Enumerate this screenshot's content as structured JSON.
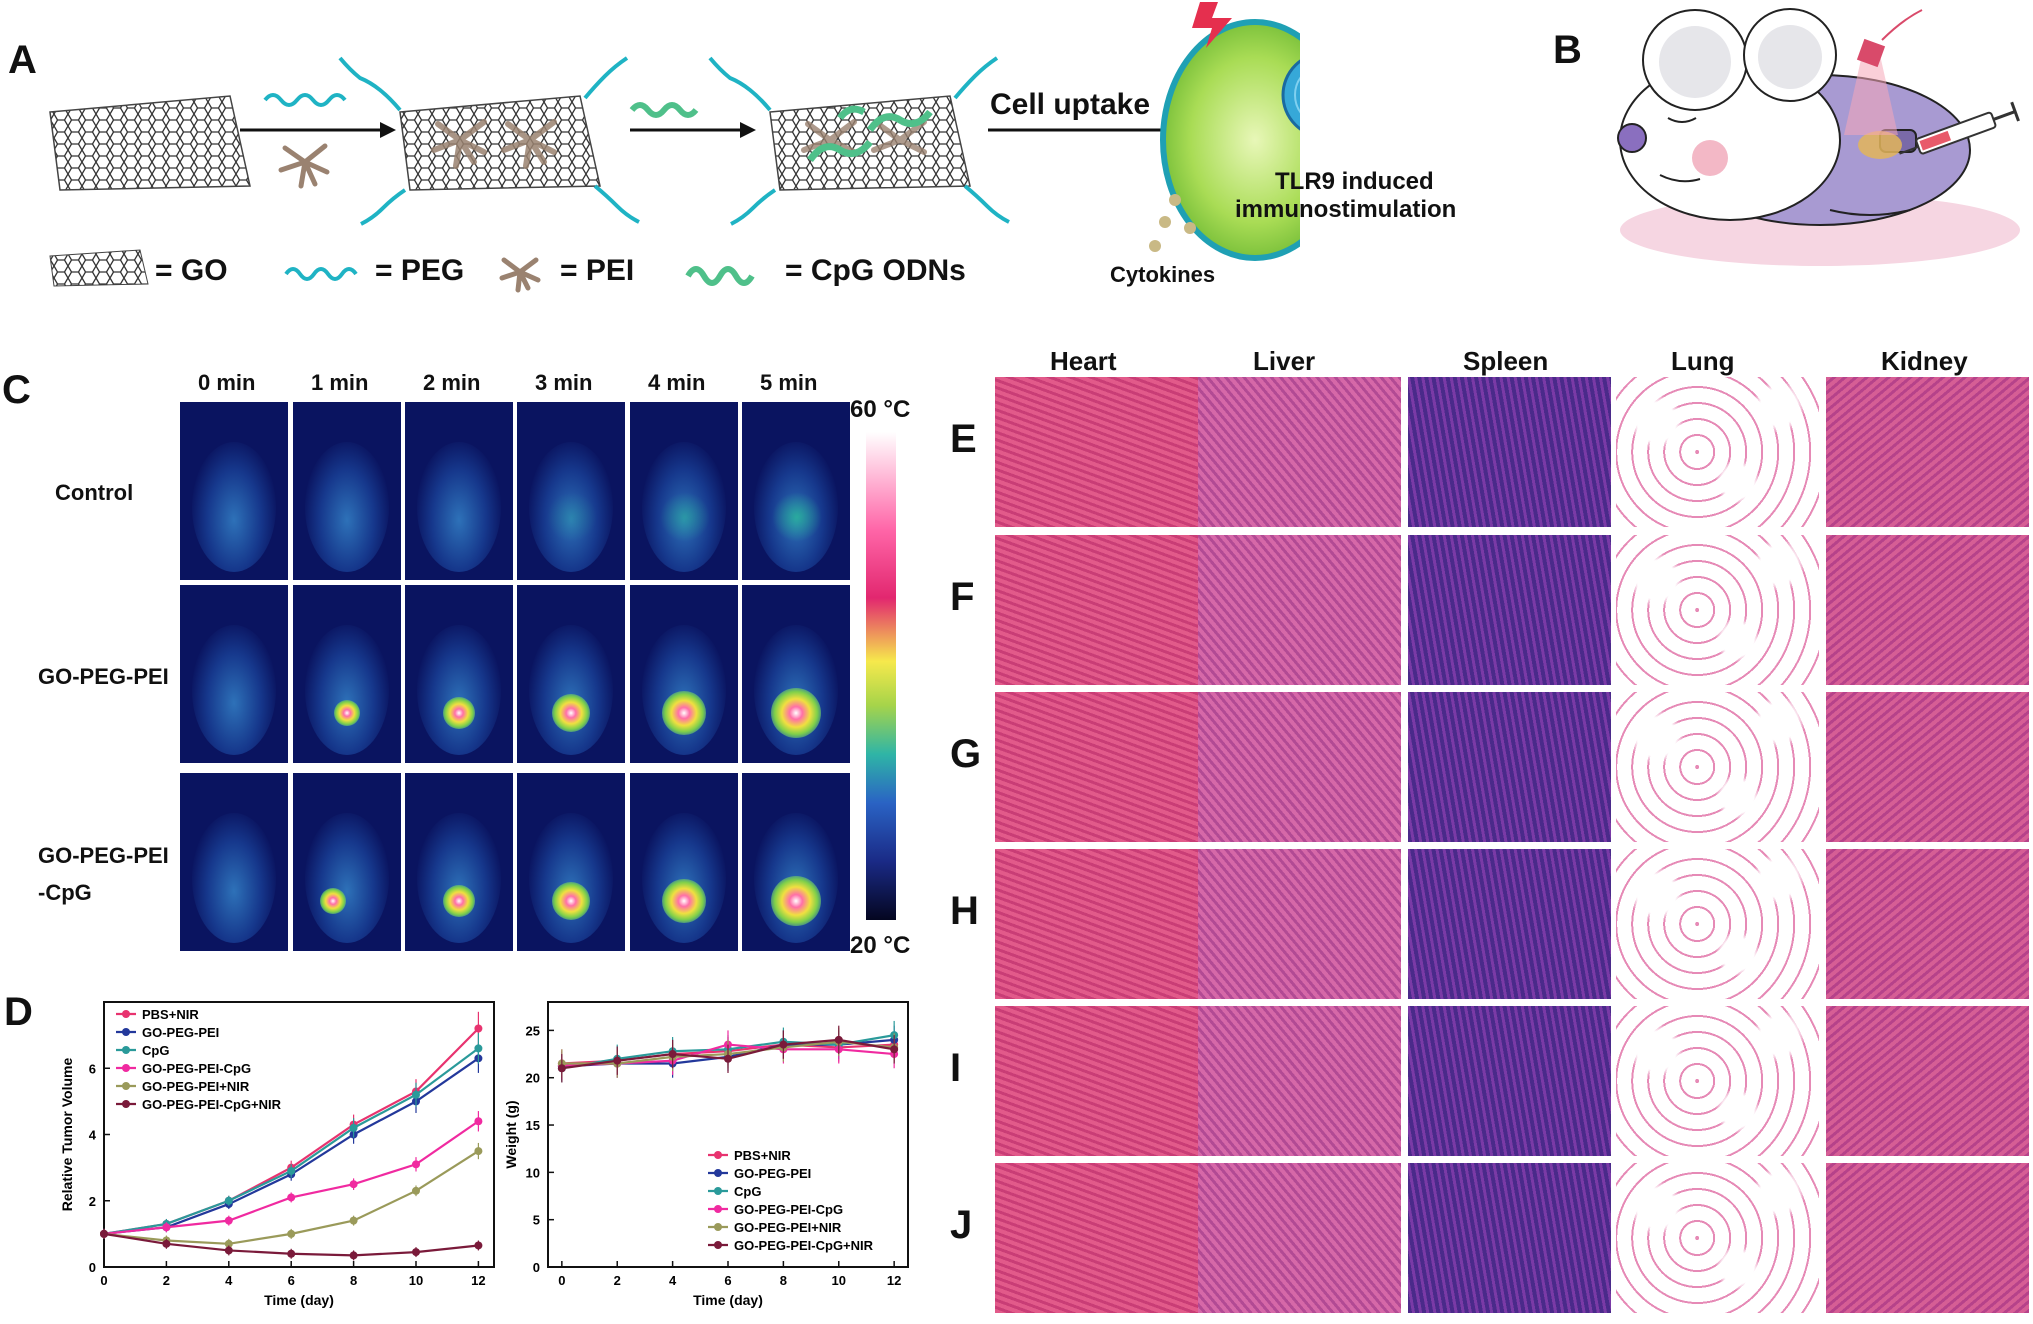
{
  "panels": {
    "A": "A",
    "B": "B",
    "C": "C",
    "D": "D",
    "E": "E",
    "F": "F",
    "G": "G",
    "H": "H",
    "I": "I",
    "J": "J"
  },
  "schematic": {
    "cell_uptake": "Cell uptake",
    "tlr9_line1": "TLR9 induced",
    "tlr9_line2": "immunostimulation",
    "cytokines": "Cytokines",
    "legend": {
      "go": "= GO",
      "peg": "= PEG",
      "pei": "= PEI",
      "cpg": "= CpG ODNs"
    },
    "colors": {
      "peg": "#1fb3c4",
      "pei": "#9a8270",
      "cpg": "#4fc08a",
      "cell": "#9fd24a"
    }
  },
  "thermal": {
    "times": [
      "0 min",
      "1 min",
      "2 min",
      "3 min",
      "4 min",
      "5 min"
    ],
    "rows": [
      "Control",
      "GO-PEG-PEI",
      "GO-PEG-PEI",
      "-CpG"
    ],
    "scale_top": "60 °C",
    "scale_bottom": "20 °C"
  },
  "histology": {
    "organs": [
      "Heart",
      "Liver",
      "Spleen",
      "Lung",
      "Kidney"
    ],
    "row_labels": [
      "E",
      "F",
      "G",
      "H",
      "I",
      "J"
    ]
  },
  "chart_data": [
    {
      "type": "line",
      "xlabel": "Time (day)",
      "ylabel": "Relative Tumor Volume",
      "x": [
        0,
        2,
        4,
        6,
        8,
        10,
        12
      ],
      "xlim": [
        0,
        12.5
      ],
      "ylim": [
        0,
        8
      ],
      "xticks": [
        "0",
        "2",
        "4",
        "6",
        "8",
        "10",
        "12"
      ],
      "yticks": [
        "0",
        "2",
        "4",
        "6"
      ],
      "legend_position": "top-left",
      "series": [
        {
          "name": "PBS+NIR",
          "color": "#e8336f",
          "values": [
            1.0,
            1.3,
            2.0,
            3.0,
            4.3,
            5.3,
            7.2
          ]
        },
        {
          "name": "GO-PEG-PEI",
          "color": "#23389b",
          "values": [
            1.0,
            1.2,
            1.9,
            2.8,
            4.0,
            5.0,
            6.3
          ]
        },
        {
          "name": "CpG",
          "color": "#2a9a9a",
          "values": [
            1.0,
            1.3,
            2.0,
            2.9,
            4.2,
            5.2,
            6.6
          ]
        },
        {
          "name": "GO-PEG-PEI-CpG",
          "color": "#f02aa0",
          "values": [
            1.0,
            1.2,
            1.4,
            2.1,
            2.5,
            3.1,
            4.4
          ]
        },
        {
          "name": "GO-PEG-PEI+NIR",
          "color": "#9a9a5a",
          "values": [
            1.0,
            0.8,
            0.7,
            1.0,
            1.4,
            2.3,
            3.5
          ]
        },
        {
          "name": "GO-PEG-PEI-CpG+NIR",
          "color": "#7a1a3a",
          "values": [
            1.0,
            0.7,
            0.5,
            0.4,
            0.35,
            0.45,
            0.65
          ]
        }
      ]
    },
    {
      "type": "line",
      "xlabel": "Time (day)",
      "ylabel": "Weight (g)",
      "x": [
        0,
        2,
        4,
        6,
        8,
        10,
        12
      ],
      "xlim": [
        -0.5,
        12.5
      ],
      "ylim": [
        0,
        28
      ],
      "xticks": [
        "0",
        "2",
        "4",
        "6",
        "8",
        "10",
        "12"
      ],
      "yticks": [
        "0",
        "5",
        "10",
        "15",
        "20",
        "25"
      ],
      "legend_position": "bottom-right",
      "series": [
        {
          "name": "PBS+NIR",
          "color": "#e8336f",
          "values": [
            21.5,
            21.8,
            22.5,
            22.8,
            23.5,
            23.2,
            23.5
          ]
        },
        {
          "name": "GO-PEG-PEI",
          "color": "#23389b",
          "values": [
            21.2,
            21.5,
            21.5,
            22.2,
            23.5,
            23.5,
            24.0
          ]
        },
        {
          "name": "CpG",
          "color": "#2a9a9a",
          "values": [
            21.0,
            22.0,
            22.8,
            23.0,
            23.8,
            23.5,
            24.5
          ]
        },
        {
          "name": "GO-PEG-PEI-CpG",
          "color": "#f02aa0",
          "values": [
            21.3,
            21.5,
            21.8,
            23.5,
            23.0,
            23.0,
            22.5
          ]
        },
        {
          "name": "GO-PEG-PEI+NIR",
          "color": "#9a9a5a",
          "values": [
            21.5,
            21.5,
            22.2,
            22.5,
            23.2,
            23.8,
            23.2
          ]
        },
        {
          "name": "GO-PEG-PEI-CpG+NIR",
          "color": "#7a1a3a",
          "values": [
            21.0,
            21.8,
            22.5,
            22.0,
            23.5,
            24.0,
            23.0
          ]
        }
      ]
    }
  ]
}
